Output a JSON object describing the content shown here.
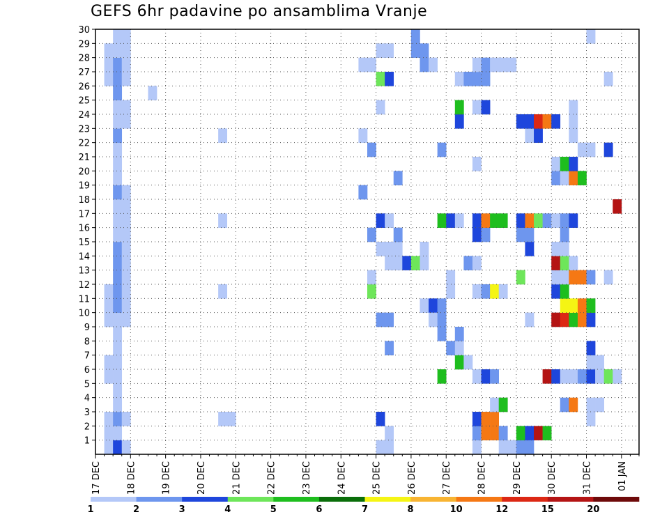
{
  "chart_data": {
    "type": "heatmap",
    "title": "GEFS 6hr padavine po ansamblima Vranje",
    "xlabel": "",
    "ylabel": "",
    "x_tick_labels": [
      "17 DEC",
      "18 DEC",
      "19 DEC",
      "20 DEC",
      "21 DEC",
      "22 DEC",
      "23 DEC",
      "24 DEC",
      "25 DEC",
      "26 DEC",
      "27 DEC",
      "28 DEC",
      "29 DEC",
      "30 DEC",
      "31 DEC",
      "01 JAN"
    ],
    "y_tick_labels": [
      "1",
      "2",
      "3",
      "4",
      "5",
      "6",
      "7",
      "8",
      "9",
      "10",
      "11",
      "12",
      "13",
      "14",
      "15",
      "16",
      "17",
      "18",
      "19",
      "20",
      "21",
      "22",
      "23",
      "24",
      "25",
      "26",
      "27",
      "28",
      "29",
      "30"
    ],
    "xlim": [
      "17 DEC 00Z",
      "01 JAN 12Z"
    ],
    "ylim": [
      0,
      30
    ],
    "grid": true,
    "x_step": "6hr",
    "legend": {
      "placement": "bottom",
      "labels": [
        "1",
        "2",
        "3",
        "4",
        "5",
        "6",
        "7",
        "8",
        "10",
        "12",
        "15",
        "20"
      ],
      "colors": [
        "#b4c8f8",
        "#6e96ee",
        "#1e46dc",
        "#6ee65a",
        "#1ebe1e",
        "#0a6e0a",
        "#f5f514",
        "#f8b432",
        "#f57814",
        "#dc2814",
        "#b41414",
        "#6e0a0a"
      ]
    },
    "cells": [
      [
        1,
        1,
        1
      ],
      [
        1,
        2,
        1
      ],
      [
        1,
        3,
        1
      ],
      [
        1,
        6,
        1
      ],
      [
        1,
        7,
        1
      ],
      [
        1,
        10,
        1
      ],
      [
        1,
        11,
        1
      ],
      [
        1,
        12,
        1
      ],
      [
        1,
        27,
        1
      ],
      [
        1,
        28,
        1
      ],
      [
        1,
        29,
        1
      ],
      [
        2,
        1,
        3
      ],
      [
        2,
        2,
        1
      ],
      [
        2,
        3,
        2
      ],
      [
        2,
        4,
        1
      ],
      [
        2,
        5,
        1
      ],
      [
        2,
        6,
        1
      ],
      [
        2,
        7,
        1
      ],
      [
        2,
        8,
        1
      ],
      [
        2,
        9,
        1
      ],
      [
        2,
        10,
        1
      ],
      [
        2,
        11,
        2
      ],
      [
        2,
        12,
        2
      ],
      [
        2,
        13,
        2
      ],
      [
        2,
        14,
        2
      ],
      [
        2,
        15,
        2
      ],
      [
        2,
        16,
        1
      ],
      [
        2,
        17,
        1
      ],
      [
        2,
        18,
        1
      ],
      [
        2,
        19,
        2
      ],
      [
        2,
        20,
        1
      ],
      [
        2,
        21,
        1
      ],
      [
        2,
        22,
        1
      ],
      [
        2,
        23,
        2
      ],
      [
        2,
        24,
        1
      ],
      [
        2,
        25,
        1
      ],
      [
        2,
        26,
        2
      ],
      [
        2,
        27,
        2
      ],
      [
        2,
        28,
        2
      ],
      [
        2,
        29,
        1
      ],
      [
        2,
        30,
        1
      ],
      [
        3,
        1,
        1
      ],
      [
        3,
        3,
        1
      ],
      [
        3,
        10,
        1
      ],
      [
        3,
        11,
        1
      ],
      [
        3,
        12,
        1
      ],
      [
        3,
        13,
        1
      ],
      [
        3,
        14,
        1
      ],
      [
        3,
        15,
        1
      ],
      [
        3,
        16,
        1
      ],
      [
        3,
        17,
        1
      ],
      [
        3,
        18,
        1
      ],
      [
        3,
        19,
        1
      ],
      [
        3,
        24,
        1
      ],
      [
        3,
        25,
        1
      ],
      [
        3,
        27,
        1
      ],
      [
        3,
        28,
        1
      ],
      [
        3,
        29,
        1
      ],
      [
        3,
        30,
        1
      ],
      [
        6,
        26,
        1
      ],
      [
        14,
        3,
        1
      ],
      [
        14,
        12,
        1
      ],
      [
        14,
        17,
        1
      ],
      [
        14,
        23,
        1
      ],
      [
        15,
        3,
        1
      ],
      [
        30,
        19,
        2
      ],
      [
        30,
        23,
        1
      ],
      [
        30,
        28,
        1
      ],
      [
        31,
        12,
        4
      ],
      [
        31,
        13,
        1
      ],
      [
        31,
        16,
        2
      ],
      [
        31,
        22,
        2
      ],
      [
        31,
        28,
        1
      ],
      [
        32,
        1,
        1
      ],
      [
        32,
        3,
        3
      ],
      [
        32,
        10,
        2
      ],
      [
        32,
        15,
        1
      ],
      [
        32,
        17,
        3
      ],
      [
        32,
        25,
        1
      ],
      [
        32,
        27,
        4
      ],
      [
        32,
        29,
        1
      ],
      [
        33,
        1,
        1
      ],
      [
        33,
        2,
        1
      ],
      [
        33,
        8,
        2
      ],
      [
        33,
        10,
        2
      ],
      [
        33,
        14,
        1
      ],
      [
        33,
        15,
        1
      ],
      [
        33,
        17,
        1
      ],
      [
        33,
        27,
        3
      ],
      [
        33,
        29,
        1
      ],
      [
        34,
        14,
        1
      ],
      [
        34,
        15,
        1
      ],
      [
        34,
        16,
        2
      ],
      [
        34,
        20,
        2
      ],
      [
        35,
        14,
        3
      ],
      [
        36,
        14,
        4
      ],
      [
        36,
        29,
        2
      ],
      [
        36,
        30,
        2
      ],
      [
        37,
        11,
        1
      ],
      [
        37,
        14,
        1
      ],
      [
        37,
        15,
        1
      ],
      [
        37,
        28,
        2
      ],
      [
        37,
        29,
        2
      ],
      [
        38,
        11,
        3
      ],
      [
        38,
        10,
        1
      ],
      [
        38,
        28,
        1
      ],
      [
        39,
        6,
        5
      ],
      [
        39,
        9,
        2
      ],
      [
        39,
        10,
        2
      ],
      [
        39,
        11,
        2
      ],
      [
        39,
        17,
        5
      ],
      [
        39,
        22,
        2
      ],
      [
        40,
        8,
        2
      ],
      [
        40,
        12,
        1
      ],
      [
        40,
        13,
        1
      ],
      [
        40,
        17,
        3
      ],
      [
        41,
        7,
        5
      ],
      [
        41,
        8,
        1
      ],
      [
        41,
        9,
        2
      ],
      [
        41,
        17,
        1
      ],
      [
        41,
        24,
        3
      ],
      [
        41,
        25,
        5
      ],
      [
        41,
        27,
        1
      ],
      [
        42,
        7,
        1
      ],
      [
        42,
        14,
        2
      ],
      [
        42,
        27,
        2
      ],
      [
        43,
        1,
        1
      ],
      [
        43,
        2,
        2
      ],
      [
        43,
        3,
        3
      ],
      [
        43,
        6,
        1
      ],
      [
        43,
        12,
        1
      ],
      [
        43,
        14,
        1
      ],
      [
        43,
        16,
        3
      ],
      [
        43,
        17,
        3
      ],
      [
        43,
        21,
        1
      ],
      [
        43,
        25,
        1
      ],
      [
        43,
        27,
        2
      ],
      [
        43,
        28,
        1
      ],
      [
        44,
        2,
        9
      ],
      [
        44,
        3,
        9
      ],
      [
        44,
        6,
        3
      ],
      [
        44,
        12,
        2
      ],
      [
        44,
        16,
        2
      ],
      [
        44,
        17,
        9
      ],
      [
        44,
        25,
        3
      ],
      [
        44,
        27,
        2
      ],
      [
        44,
        28,
        2
      ],
      [
        45,
        2,
        9
      ],
      [
        45,
        3,
        9
      ],
      [
        45,
        4,
        1
      ],
      [
        45,
        6,
        2
      ],
      [
        45,
        12,
        7
      ],
      [
        45,
        17,
        5
      ],
      [
        45,
        28,
        1
      ],
      [
        46,
        1,
        1
      ],
      [
        46,
        2,
        2
      ],
      [
        46,
        4,
        5
      ],
      [
        46,
        12,
        1
      ],
      [
        46,
        17,
        5
      ],
      [
        46,
        28,
        1
      ],
      [
        47,
        1,
        1
      ],
      [
        47,
        28,
        1
      ],
      [
        48,
        1,
        2
      ],
      [
        48,
        2,
        5
      ],
      [
        48,
        13,
        4
      ],
      [
        48,
        16,
        2
      ],
      [
        48,
        17,
        3
      ],
      [
        48,
        24,
        3
      ],
      [
        49,
        1,
        2
      ],
      [
        49,
        2,
        3
      ],
      [
        49,
        10,
        1
      ],
      [
        49,
        15,
        3
      ],
      [
        49,
        16,
        2
      ],
      [
        49,
        17,
        9
      ],
      [
        49,
        23,
        1
      ],
      [
        49,
        24,
        3
      ],
      [
        50,
        2,
        11
      ],
      [
        50,
        17,
        4
      ],
      [
        50,
        23,
        3
      ],
      [
        50,
        24,
        10
      ],
      [
        51,
        2,
        5
      ],
      [
        51,
        6,
        11
      ],
      [
        51,
        17,
        2
      ],
      [
        51,
        24,
        9
      ],
      [
        52,
        6,
        3
      ],
      [
        52,
        10,
        11
      ],
      [
        52,
        12,
        3
      ],
      [
        52,
        13,
        1
      ],
      [
        52,
        14,
        11
      ],
      [
        52,
        15,
        1
      ],
      [
        52,
        17,
        1
      ],
      [
        52,
        20,
        2
      ],
      [
        52,
        21,
        1
      ],
      [
        52,
        24,
        3
      ],
      [
        53,
        4,
        2
      ],
      [
        53,
        6,
        1
      ],
      [
        53,
        10,
        10
      ],
      [
        53,
        11,
        7
      ],
      [
        53,
        12,
        5
      ],
      [
        53,
        13,
        1
      ],
      [
        53,
        14,
        4
      ],
      [
        53,
        15,
        1
      ],
      [
        53,
        16,
        2
      ],
      [
        53,
        17,
        2
      ],
      [
        53,
        20,
        1
      ],
      [
        53,
        21,
        5
      ],
      [
        54,
        4,
        9
      ],
      [
        54,
        6,
        1
      ],
      [
        54,
        10,
        5
      ],
      [
        54,
        11,
        7
      ],
      [
        54,
        13,
        9
      ],
      [
        54,
        14,
        1
      ],
      [
        54,
        17,
        3
      ],
      [
        54,
        20,
        9
      ],
      [
        54,
        21,
        3
      ],
      [
        54,
        23,
        1
      ],
      [
        54,
        24,
        1
      ],
      [
        54,
        25,
        1
      ],
      [
        55,
        6,
        2
      ],
      [
        55,
        10,
        9
      ],
      [
        55,
        11,
        9
      ],
      [
        55,
        13,
        9
      ],
      [
        55,
        20,
        5
      ],
      [
        55,
        22,
        1
      ],
      [
        56,
        3,
        1
      ],
      [
        56,
        4,
        1
      ],
      [
        56,
        6,
        3
      ],
      [
        56,
        7,
        1
      ],
      [
        56,
        8,
        3
      ],
      [
        56,
        10,
        3
      ],
      [
        56,
        11,
        5
      ],
      [
        56,
        13,
        2
      ],
      [
        56,
        22,
        1
      ],
      [
        56,
        30,
        1
      ],
      [
        57,
        4,
        1
      ],
      [
        57,
        6,
        1
      ],
      [
        57,
        7,
        1
      ],
      [
        58,
        6,
        4
      ],
      [
        58,
        13,
        1
      ],
      [
        58,
        22,
        3
      ],
      [
        58,
        27,
        1
      ],
      [
        59,
        6,
        1
      ],
      [
        59,
        18,
        11
      ]
    ]
  }
}
